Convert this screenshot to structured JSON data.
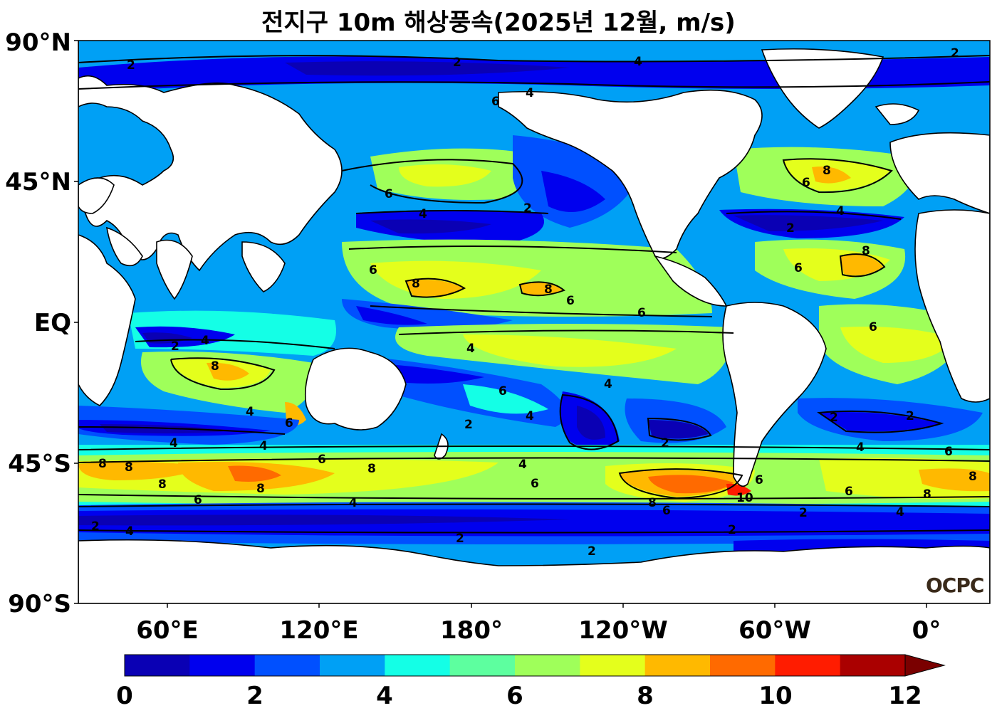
{
  "title": "전지구 10m 해상풍속(2025년 12월, m/s)",
  "y_ticks": [
    "90°N",
    "45°N",
    "EQ",
    "45°S",
    "90°S"
  ],
  "x_ticks": [
    "60°E",
    "120°E",
    "180°",
    "120°W",
    "60°W",
    "0°"
  ],
  "colorbar": {
    "ticks": [
      "0",
      "2",
      "4",
      "6",
      "8",
      "10",
      "12"
    ],
    "extend": "max",
    "colors": [
      "#0a00b4",
      "#0000ee",
      "#0050ff",
      "#00a0f5",
      "#14ffe6",
      "#5dff9f",
      "#9fff5a",
      "#e4ff1c",
      "#ffb900",
      "#ff6a00",
      "#ff1c00",
      "#aa0000"
    ],
    "extend_color": "#7a0000"
  },
  "logo": "OCPC",
  "colors": {
    "land": "#ffffff",
    "coast": "#000000"
  },
  "contour_labels": [
    "2",
    "4",
    "6",
    "8",
    "10"
  ]
}
